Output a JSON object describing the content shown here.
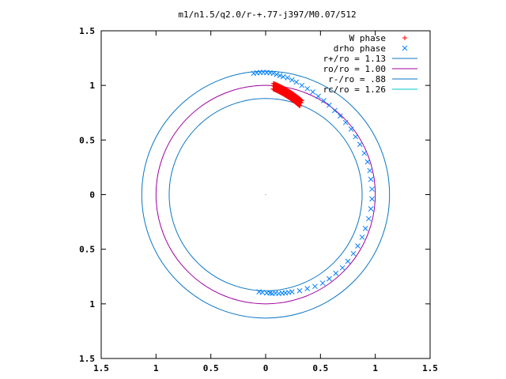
{
  "chart_data": {
    "type": "scatter",
    "title": "m1/n1.5/q2.0/r-+.77-j397/M0.07/512",
    "xlabel": "",
    "ylabel": "",
    "xlim": [
      -1.5,
      1.5
    ],
    "ylim": [
      -1.5,
      1.5
    ],
    "x_ticks": [
      -1.5,
      -1,
      -0.5,
      0,
      0.5,
      1,
      1.5
    ],
    "y_ticks": [
      -1.5,
      -1,
      -0.5,
      0,
      0.5,
      1,
      1.5
    ],
    "x_tick_labels": [
      "1.5",
      "1",
      "0.5",
      "0",
      "0.5",
      "1",
      "1.5"
    ],
    "y_tick_labels": [
      "1.5",
      "1",
      "0.5",
      "0",
      "0.5",
      "1",
      "1.5"
    ],
    "grid": false,
    "legend_position": "top-right",
    "series": [
      {
        "name": "W phase",
        "kind": "points",
        "marker": "plus",
        "color": "#ff0000",
        "arc": {
          "radius_start": 1.0,
          "radius_end": 0.9,
          "angle_start_deg": 86,
          "angle_end_deg": 69,
          "count": 40
        }
      },
      {
        "name": "drho phase",
        "kind": "points",
        "marker": "cross",
        "color": "#0080ff",
        "points": [
          [
            -0.11,
            1.11
          ],
          [
            -0.08,
            1.115
          ],
          [
            -0.05,
            1.118
          ],
          [
            -0.02,
            1.12
          ],
          [
            0.01,
            1.118
          ],
          [
            0.04,
            1.115
          ],
          [
            0.07,
            1.11
          ],
          [
            0.1,
            1.1
          ],
          [
            0.13,
            1.09
          ],
          [
            0.16,
            1.08
          ],
          [
            0.2,
            1.07
          ],
          [
            0.24,
            1.05
          ],
          [
            0.28,
            1.03
          ],
          [
            0.33,
            1.0
          ],
          [
            0.38,
            0.97
          ],
          [
            0.43,
            0.94
          ],
          [
            0.48,
            0.9
          ],
          [
            0.53,
            0.86
          ],
          [
            0.58,
            0.82
          ],
          [
            0.63,
            0.77
          ],
          [
            0.68,
            0.72
          ],
          [
            0.73,
            0.66
          ],
          [
            0.78,
            0.6
          ],
          [
            0.82,
            0.53
          ],
          [
            0.86,
            0.46
          ],
          [
            0.9,
            0.38
          ],
          [
            0.93,
            0.3
          ],
          [
            0.95,
            0.22
          ],
          [
            0.96,
            0.14
          ],
          [
            0.97,
            0.05
          ],
          [
            0.97,
            -0.04
          ],
          [
            0.96,
            -0.13
          ],
          [
            0.94,
            -0.22
          ],
          [
            0.91,
            -0.31
          ],
          [
            0.88,
            -0.39
          ],
          [
            0.84,
            -0.47
          ],
          [
            0.8,
            -0.54
          ],
          [
            0.75,
            -0.61
          ],
          [
            0.7,
            -0.67
          ],
          [
            0.64,
            -0.72
          ],
          [
            0.58,
            -0.77
          ],
          [
            0.52,
            -0.81
          ],
          [
            0.45,
            -0.84
          ],
          [
            0.38,
            -0.86
          ],
          [
            0.31,
            -0.88
          ],
          [
            0.24,
            -0.89
          ],
          [
            0.18,
            -0.9
          ],
          [
            0.12,
            -0.905
          ],
          [
            0.06,
            -0.905
          ],
          [
            0.01,
            -0.9
          ],
          [
            -0.03,
            -0.895
          ],
          [
            -0.06,
            -0.89
          ],
          [
            0.04,
            -0.9
          ],
          [
            0.09,
            -0.902
          ],
          [
            0.15,
            -0.902
          ],
          [
            0.21,
            -0.895
          ]
        ]
      },
      {
        "name": "r+/ro = 1.13",
        "kind": "circle",
        "radius": 1.13,
        "color": "#0b76c4"
      },
      {
        "name": "ro/ro = 1.00",
        "kind": "circle",
        "radius": 1.0,
        "color": "#a000a0"
      },
      {
        "name": "r-/ro =  .88",
        "kind": "circle",
        "radius": 0.88,
        "color": "#0b76c4"
      },
      {
        "name": "rc/ro = 1.26",
        "kind": "circle",
        "radius": 1.26,
        "color": "#00c8c8",
        "drawn": false
      }
    ]
  }
}
